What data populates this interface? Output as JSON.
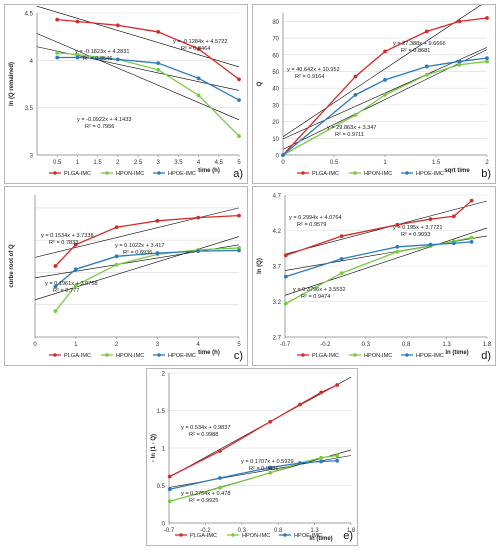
{
  "figure": {
    "colors": {
      "PLGA-IMC": "#d62b2b",
      "HPON-IMC": "#7ac943",
      "HPOE-IMC": "#2b7bbf",
      "fit": "#000000"
    }
  },
  "chart_data": [
    {
      "panel": "a)",
      "type": "line",
      "xlabel": "time (h)",
      "ylabel": "ln (Q remained)",
      "xlim": [
        0,
        5
      ],
      "ylim": [
        3,
        4.5
      ],
      "xticks": [
        "0.5",
        "1",
        "1.5",
        "2",
        "2.5",
        "3",
        "3.5",
        "4",
        "4.5",
        "5"
      ],
      "yticks": [
        "3",
        "3.5",
        "4",
        "4.5"
      ],
      "grid": "horizontal",
      "legend": "bottom",
      "series": [
        {
          "name": "PLGA-IMC",
          "x": [
            0.5,
            1,
            2,
            3,
            4,
            5
          ],
          "y": [
            4.43,
            4.41,
            4.37,
            4.3,
            4.12,
            3.8
          ]
        },
        {
          "name": "HPON-IMC",
          "x": [
            0.5,
            1,
            2,
            3,
            4,
            5
          ],
          "y": [
            4.08,
            4.06,
            4.01,
            3.9,
            3.63,
            3.2
          ]
        },
        {
          "name": "HPOE-IMC",
          "x": [
            0.5,
            1,
            2,
            3,
            4,
            5
          ],
          "y": [
            4.03,
            4.03,
            4.01,
            3.97,
            3.81,
            3.58
          ]
        }
      ],
      "fits": [
        {
          "slope": -0.1284,
          "intercept": 4.5722,
          "label": "y = -0.1284x + 4.5722",
          "r2": "R² = 0.8464"
        },
        {
          "slope": -0.1823,
          "intercept": 4.2831,
          "label": "y = -0.1823x + 4.2831",
          "r2": "R² = 0.8546"
        },
        {
          "slope": -0.0922,
          "intercept": 4.1433,
          "label": "y = -0.0922x + 4.1433",
          "r2": "R² = 0.7956"
        }
      ]
    },
    {
      "panel": "b)",
      "type": "line",
      "xlabel": "sqrt time",
      "ylabel": "Q",
      "xlim": [
        0,
        2
      ],
      "ylim": [
        0,
        85
      ],
      "xticks": [
        "0",
        "0.5",
        "1",
        "1.5",
        "2"
      ],
      "yticks": [
        "0",
        "10",
        "20",
        "30",
        "40",
        "50",
        "60",
        "70",
        "80"
      ],
      "grid": "horizontal",
      "legend": "bottom",
      "series": [
        {
          "name": "PLGA-IMC",
          "x": [
            0,
            0.71,
            1.0,
            1.41,
            1.73,
            2.0
          ],
          "y": [
            0,
            47,
            62,
            74,
            80,
            82
          ]
        },
        {
          "name": "HPON-IMC",
          "x": [
            0,
            0.71,
            1.0,
            1.41,
            1.73,
            2.0
          ],
          "y": [
            0,
            24,
            36,
            48,
            54,
            56
          ]
        },
        {
          "name": "HPOE-IMC",
          "x": [
            0,
            0.71,
            1.0,
            1.41,
            1.73,
            2.0
          ],
          "y": [
            0,
            36,
            45,
            53,
            56,
            58
          ]
        }
      ],
      "fits": [
        {
          "slope": 40.642,
          "intercept": 10.952,
          "label": "y = 40.642x + 10.952",
          "r2": "R² = 0.9164"
        },
        {
          "slope": 29.863,
          "intercept": 3.347,
          "label": "y = 29.863x + 3.347",
          "r2": "R² = 0.9711"
        },
        {
          "slope": 27.388,
          "intercept": 9.6666,
          "label": "y = 27.388x + 9.6666",
          "r2": "R² = 0.8681"
        }
      ]
    },
    {
      "panel": "c)",
      "type": "line",
      "xlabel": "time (h)",
      "ylabel": "curbe root of Q",
      "xlim": [
        0,
        5
      ],
      "ylim": [
        2.5,
        4.7
      ],
      "xticks": [
        "0",
        "1",
        "2",
        "3",
        "4",
        "5"
      ],
      "yticks": [],
      "grid": "horizontal",
      "legend": "bottom",
      "series": [
        {
          "name": "PLGA-IMC",
          "x": [
            0.5,
            1,
            2,
            3,
            4,
            5
          ],
          "y": [
            3.6,
            3.93,
            4.2,
            4.3,
            4.35,
            4.38
          ]
        },
        {
          "name": "HPON-IMC",
          "x": [
            0.5,
            1,
            2,
            3,
            4,
            5
          ],
          "y": [
            2.9,
            3.3,
            3.62,
            3.78,
            3.85,
            3.88
          ]
        },
        {
          "name": "HPOE-IMC",
          "x": [
            0.5,
            1,
            2,
            3,
            4,
            5
          ],
          "y": [
            3.28,
            3.55,
            3.75,
            3.8,
            3.83,
            3.84
          ]
        }
      ],
      "fits": [
        {
          "slope": 0.1534,
          "intercept": 3.7338,
          "label": "y = 0.1534x + 3.7338",
          "r2": "R² = 0.7833"
        },
        {
          "slope": 0.1022,
          "intercept": 3.417,
          "label": "y = 0.1022x + 3.417",
          "r2": "R² = 0.6936"
        },
        {
          "slope": 0.1961,
          "intercept": 3.0758,
          "label": "y = 0.1961x + 3.0758",
          "r2": "R² = 0.777"
        }
      ]
    },
    {
      "panel": "d)",
      "type": "line",
      "xlabel": "ln (time)",
      "ylabel": "ln (Q)",
      "xlim": [
        -0.7,
        1.8
      ],
      "ylim": [
        2.7,
        4.7
      ],
      "xticks": [
        "-0.7",
        "-0.2",
        "0.3",
        "0.8",
        "1.3",
        "1.8"
      ],
      "yticks": [
        "2.7",
        "3.2",
        "3.7",
        "4.2",
        "4.7"
      ],
      "grid": "horizontal",
      "legend": "bottom",
      "series": [
        {
          "name": "PLGA-IMC",
          "x": [
            -0.69,
            0,
            0.69,
            1.1,
            1.39,
            1.61
          ],
          "y": [
            3.85,
            4.12,
            4.28,
            4.36,
            4.4,
            4.62
          ]
        },
        {
          "name": "HPON-IMC",
          "x": [
            -0.69,
            0,
            0.69,
            1.1,
            1.39,
            1.61
          ],
          "y": [
            3.17,
            3.6,
            3.9,
            3.98,
            4.05,
            4.1
          ]
        },
        {
          "name": "HPOE-IMC",
          "x": [
            -0.69,
            0,
            0.69,
            1.1,
            1.39,
            1.61
          ],
          "y": [
            3.55,
            3.8,
            3.97,
            4.0,
            4.02,
            4.04
          ]
        }
      ],
      "fits": [
        {
          "slope": 0.2994,
          "intercept": 4.0764,
          "label": "y = 0.2994x + 4.0764",
          "r2": "R² = 0.9579"
        },
        {
          "slope": 0.195,
          "intercept": 3.7721,
          "label": "y = 0.195x + 3.7721",
          "r2": "R² = 0.9093"
        },
        {
          "slope": 0.3796,
          "intercept": 3.5532,
          "label": "y = 0.3796x + 3.5532",
          "r2": "R² = 0.9474"
        }
      ]
    },
    {
      "panel": "e)",
      "type": "line",
      "xlabel": "ln (time)",
      "ylabel": "- ln (1 - Q)",
      "xlim": [
        -0.7,
        1.8
      ],
      "ylim": [
        0,
        2
      ],
      "xticks": [
        "-0.7",
        "-0.2",
        "0.3",
        "0.8",
        "1.3",
        "1.8"
      ],
      "yticks": [
        "0",
        "0.5",
        "1",
        "1.5",
        "2"
      ],
      "grid": "horizontal",
      "legend": "bottom",
      "series": [
        {
          "name": "PLGA-IMC",
          "x": [
            -0.69,
            0,
            0.69,
            1.1,
            1.39,
            1.61
          ],
          "y": [
            0.62,
            0.96,
            1.35,
            1.58,
            1.74,
            1.84
          ]
        },
        {
          "name": "HPON-IMC",
          "x": [
            -0.69,
            0,
            0.69,
            1.1,
            1.39,
            1.61
          ],
          "y": [
            0.29,
            0.47,
            0.67,
            0.8,
            0.87,
            0.9
          ]
        },
        {
          "name": "HPOE-IMC",
          "x": [
            -0.69,
            0,
            0.69,
            1.1,
            1.39,
            1.61
          ],
          "y": [
            0.45,
            0.6,
            0.74,
            0.8,
            0.82,
            0.83
          ]
        }
      ],
      "fits": [
        {
          "slope": 0.534,
          "intercept": 0.9837,
          "label": "y = 0.534x + 0.9837",
          "r2": "R² = 0.9988"
        },
        {
          "slope": 0.1707,
          "intercept": 0.5929,
          "label": "y = 0.1707x + 0.5929",
          "r2": "R² = 0.9481"
        },
        {
          "slope": 0.2754,
          "intercept": 0.478,
          "label": "y = 0.2754x + 0.478",
          "r2": "R² = 0.9925"
        }
      ]
    }
  ]
}
